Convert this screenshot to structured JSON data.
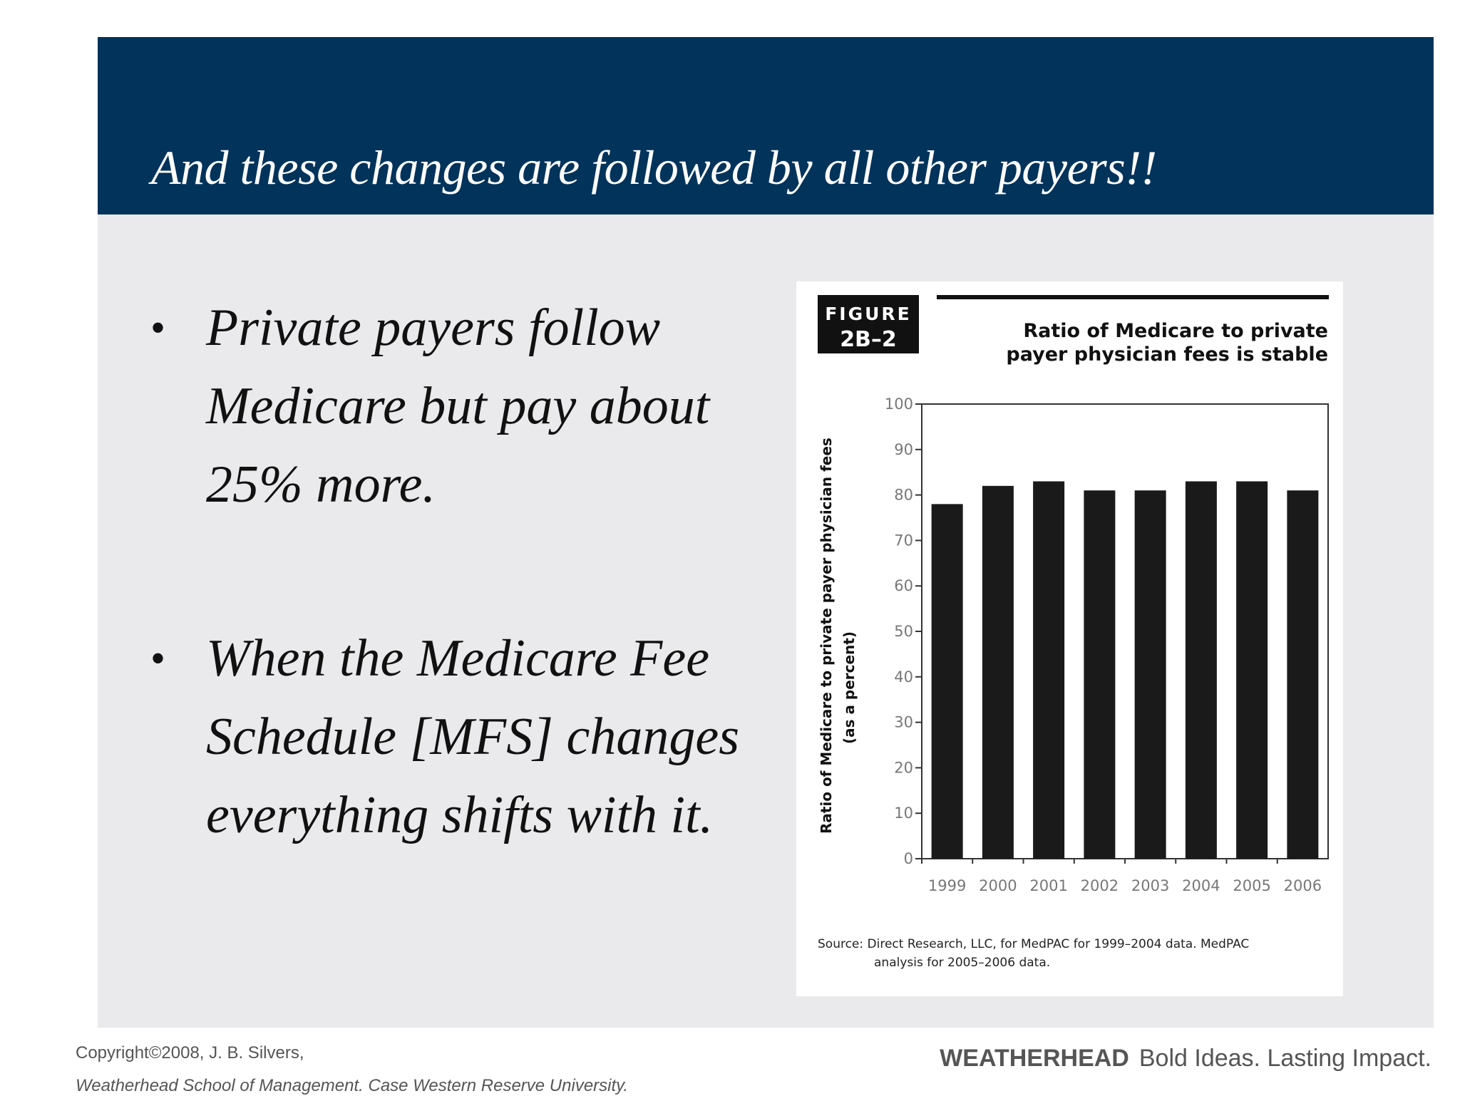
{
  "header": {
    "title": "And these changes are followed by all other payers!!"
  },
  "bullets": [
    {
      "text": "Private payers follow Medicare but pay about 25% more."
    },
    {
      "text": "When the Medicare Fee Schedule [MFS] changes everything shifts with it."
    }
  ],
  "figure": {
    "label_top": "FIGURE",
    "label_num": "2B–2",
    "source_line1": "Source:  Direct Research, LLC, for MedPAC for 1999–2004 data. MedPAC",
    "source_line2": "analysis for 2005–2006 data."
  },
  "chart_data": {
    "type": "bar",
    "title": "Ratio of Medicare to private payer physician fees is stable",
    "title_line1": "Ratio of Medicare to private",
    "title_line2": "payer physician fees is stable",
    "xlabel": "",
    "ylabel": "Ratio of Medicare to private payer physician fees (as a percent)",
    "ylabel_line1": "Ratio of Medicare to private payer physician fees",
    "ylabel_line2": "(as a percent)",
    "categories": [
      "1999",
      "2000",
      "2001",
      "2002",
      "2003",
      "2004",
      "2005",
      "2006"
    ],
    "values": [
      78,
      82,
      83,
      81,
      81,
      83,
      83,
      81
    ],
    "ylim": [
      0,
      100
    ],
    "yticks": [
      0,
      10,
      20,
      30,
      40,
      50,
      60,
      70,
      80,
      90,
      100
    ],
    "grid": false,
    "bar_color": "#1a1a1a"
  },
  "footer": {
    "copyright": "Copyright©2008, J. B. Silvers,",
    "school": "Weatherhead School of Management.  Case Western Reserve University.",
    "brand": "WEATHERHEAD",
    "tagline": "Bold Ideas. Lasting Impact."
  },
  "colors": {
    "header_bg": "#02335b",
    "content_bg": "#eaeaec"
  }
}
